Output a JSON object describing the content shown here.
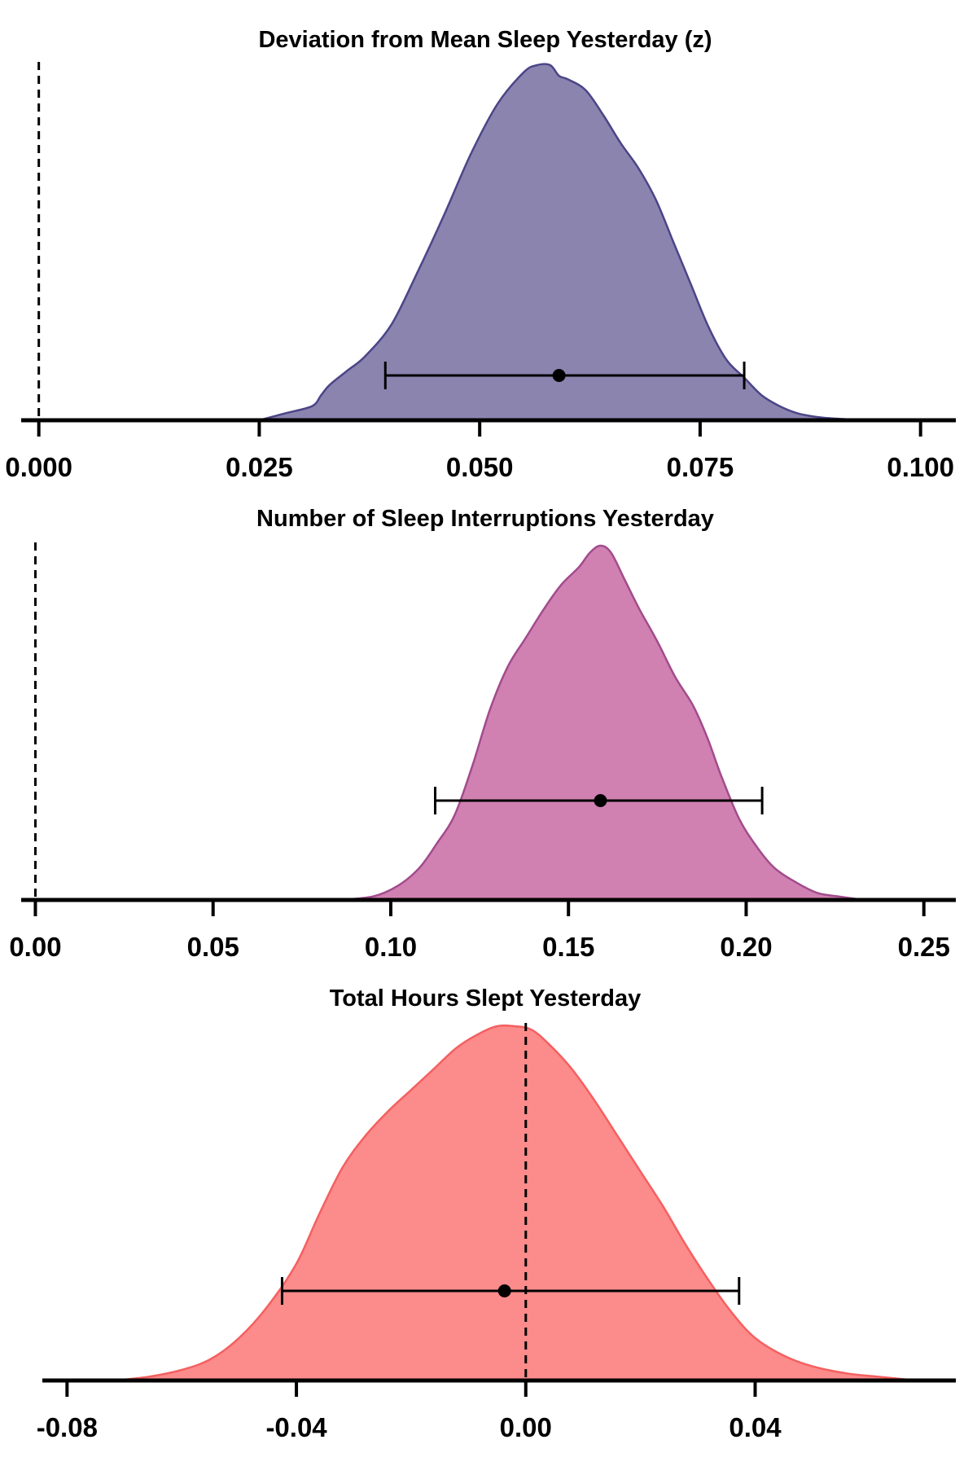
{
  "chart_data": [
    {
      "type": "area",
      "title": "Deviation from Mean Sleep Yesterday (z)",
      "xlim": [
        -0.002,
        0.104
      ],
      "ticks": [
        0.0,
        0.025,
        0.05,
        0.075,
        0.1
      ],
      "tick_labels": [
        "0.000",
        "0.025",
        "0.050",
        "0.075",
        "0.100"
      ],
      "reference_line": 0.0,
      "fill_color": "#8a84af",
      "stroke_color": "#4b4587",
      "density": {
        "x": [
          0.025,
          0.028,
          0.031,
          0.032,
          0.033,
          0.035,
          0.037,
          0.04,
          0.043,
          0.046,
          0.049,
          0.052,
          0.055,
          0.0565,
          0.058,
          0.059,
          0.06,
          0.062,
          0.064,
          0.066,
          0.068,
          0.07,
          0.072,
          0.074,
          0.076,
          0.078,
          0.08,
          0.082,
          0.084,
          0.086,
          0.088,
          0.09,
          0.0935
        ],
        "y": [
          0.0,
          0.02,
          0.04,
          0.07,
          0.1,
          0.14,
          0.18,
          0.27,
          0.42,
          0.58,
          0.75,
          0.89,
          0.98,
          1.0,
          1.0,
          0.97,
          0.96,
          0.93,
          0.86,
          0.78,
          0.71,
          0.62,
          0.5,
          0.38,
          0.26,
          0.17,
          0.12,
          0.07,
          0.04,
          0.02,
          0.01,
          0.005,
          0.0
        ]
      },
      "point_estimate": 0.059,
      "interval": [
        0.0393,
        0.08
      ]
    },
    {
      "type": "area",
      "title": "Number of Sleep Interruptions Yesterday",
      "xlim": [
        -0.004,
        0.259
      ],
      "ticks": [
        0.0,
        0.05,
        0.1,
        0.15,
        0.2,
        0.25
      ],
      "tick_labels": [
        "0.00",
        "0.05",
        "0.10",
        "0.15",
        "0.20",
        "0.25"
      ],
      "reference_line": 0.0,
      "fill_color": "#d081b1",
      "stroke_color": "#a24b8c",
      "density": {
        "x": [
          0.085,
          0.095,
          0.102,
          0.108,
          0.113,
          0.118,
          0.123,
          0.128,
          0.133,
          0.138,
          0.143,
          0.148,
          0.153,
          0.156,
          0.159,
          0.162,
          0.166,
          0.17,
          0.175,
          0.18,
          0.185,
          0.189,
          0.193,
          0.198,
          0.203,
          0.208,
          0.214,
          0.22,
          0.226,
          0.233
        ],
        "y": [
          0.0,
          0.01,
          0.04,
          0.09,
          0.16,
          0.24,
          0.38,
          0.54,
          0.66,
          0.74,
          0.82,
          0.89,
          0.94,
          0.98,
          1.0,
          0.98,
          0.9,
          0.82,
          0.73,
          0.63,
          0.55,
          0.46,
          0.35,
          0.23,
          0.15,
          0.09,
          0.05,
          0.02,
          0.01,
          0.0
        ]
      },
      "point_estimate": 0.159,
      "interval": [
        0.1125,
        0.2045
      ]
    },
    {
      "type": "area",
      "title": "Total Hours Slept Yesterday",
      "xlim": [
        -0.088,
        0.075
      ],
      "ticks": [
        -0.08,
        -0.04,
        0.0,
        0.04
      ],
      "tick_labels": [
        "-0.08",
        "-0.04",
        "0.00",
        "0.04"
      ],
      "reference_line": 0.0,
      "fill_color": "#fc8b8b",
      "stroke_color": "#f46060",
      "density": {
        "x": [
          -0.072,
          -0.066,
          -0.06,
          -0.055,
          -0.05,
          -0.045,
          -0.04,
          -0.036,
          -0.032,
          -0.028,
          -0.024,
          -0.02,
          -0.016,
          -0.012,
          -0.008,
          -0.005,
          -0.002,
          0.001,
          0.004,
          0.008,
          0.012,
          0.016,
          0.02,
          0.024,
          0.028,
          0.032,
          0.036,
          0.04,
          0.045,
          0.05,
          0.056,
          0.062,
          0.068
        ],
        "y": [
          0.0,
          0.01,
          0.03,
          0.06,
          0.12,
          0.21,
          0.33,
          0.47,
          0.6,
          0.69,
          0.76,
          0.82,
          0.88,
          0.94,
          0.98,
          1.0,
          1.0,
          0.99,
          0.95,
          0.88,
          0.79,
          0.69,
          0.59,
          0.49,
          0.38,
          0.28,
          0.19,
          0.12,
          0.07,
          0.04,
          0.02,
          0.01,
          0.0
        ]
      },
      "point_estimate": -0.0037,
      "interval": [
        -0.0425,
        0.0372
      ]
    }
  ]
}
